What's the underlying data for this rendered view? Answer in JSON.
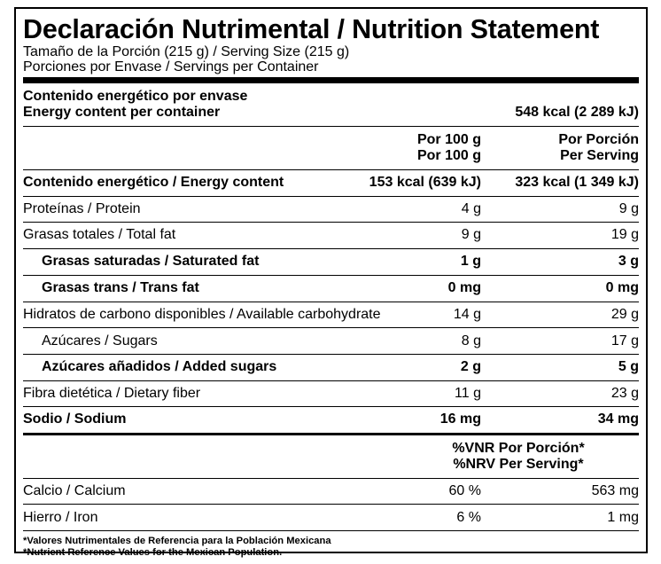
{
  "title": "Declaración Nutrimental / Nutrition Statement",
  "serving_size": "Tamaño de la Porción (215 g) / Serving Size (215 g)",
  "servings_per_container": "Porciones por Envase / Servings per Container",
  "energy_container": {
    "label_es": "Contenido energético por envase",
    "label_en": "Energy content per container",
    "value": "548 kcal (2 289 kJ)"
  },
  "columns": {
    "per100_es": "Por 100 g",
    "per100_en": "Por 100 g",
    "perserv_es": "Por Porción",
    "perserv_en": "Per Serving"
  },
  "rows": [
    {
      "label": "Contenido energético / Energy content",
      "per100": "153 kcal (639 kJ)",
      "perserv": "323 kcal (1 349 kJ)"
    },
    {
      "label": "Proteínas / Protein",
      "per100": "4 g",
      "perserv": "9 g"
    },
    {
      "label": "Grasas totales / Total fat",
      "per100": "9 g",
      "perserv": "19 g"
    },
    {
      "label": "Grasas saturadas / Saturated fat",
      "per100": "1 g",
      "perserv": "3 g"
    },
    {
      "label": "Grasas trans / Trans fat",
      "per100": "0 mg",
      "perserv": "0 mg"
    },
    {
      "label": "Hidratos de carbono disponibles / Available carbohydrate",
      "per100": "14 g",
      "perserv": "29 g"
    },
    {
      "label": "Azúcares / Sugars",
      "per100": "8 g",
      "perserv": "17 g"
    },
    {
      "label": "Azúcares añadidos / Added sugars",
      "per100": "2 g",
      "perserv": "5 g"
    },
    {
      "label": "Fibra dietética / Dietary fiber",
      "per100": "11 g",
      "perserv": "23 g"
    },
    {
      "label": "Sodio / Sodium",
      "per100": "16 mg",
      "perserv": "34 mg"
    }
  ],
  "vnr_header": {
    "line1": "%VNR Por Porción*",
    "line2": "%NRV Per Serving*"
  },
  "minerals": [
    {
      "label": "Calcio / Calcium",
      "percent": "60 %",
      "amount": "563 mg"
    },
    {
      "label": "Hierro / Iron",
      "percent": "6 %",
      "amount": "1 mg"
    }
  ],
  "footnote": {
    "line1": "*Valores Nutrimentales de Referencia para la Población Mexicana",
    "line2": "*Nutrient Reference Values for the Mexican Population."
  }
}
